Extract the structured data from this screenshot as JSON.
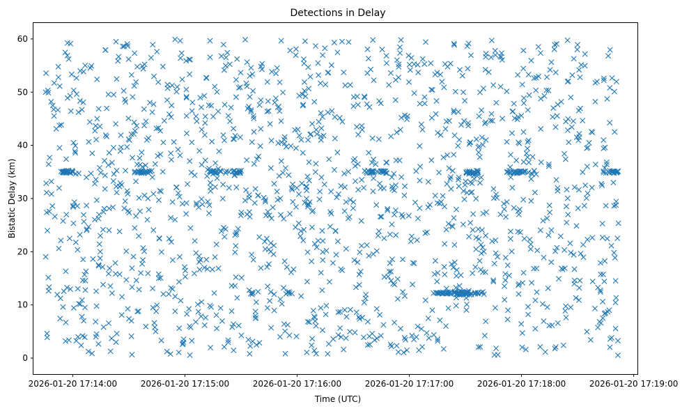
{
  "chart_data": {
    "type": "scatter",
    "title": "Detections in Delay",
    "xlabel": "Time (UTC)",
    "ylabel": "Bistatic Delay (km)",
    "marker": "x",
    "color": "#1f77b4",
    "grid": false,
    "legend": "none",
    "x_start": "2026-01-20 17:13:45",
    "x_end": "2026-01-20 17:18:52",
    "xlim": [
      "2026-01-20 17:13:39",
      "2026-01-20 17:19:02"
    ],
    "ylim": [
      -3,
      63
    ],
    "xticks": [
      "2026-01-20 17:14:00",
      "2026-01-20 17:15:00",
      "2026-01-20 17:16:00",
      "2026-01-20 17:17:00",
      "2026-01-20 17:18:00",
      "2026-01-20 17:19:00"
    ],
    "yticks": [
      "0",
      "10",
      "20",
      "30",
      "40",
      "50",
      "60"
    ],
    "background_points": 1500,
    "value_range": [
      0.5,
      60
    ],
    "bands": [
      {
        "y": 35,
        "start": "2026-01-20 17:13:53",
        "end": "2026-01-20 17:14:00",
        "points": 25
      },
      {
        "y": 35,
        "start": "2026-01-20 17:14:33",
        "end": "2026-01-20 17:14:43",
        "points": 20
      },
      {
        "y": 35,
        "start": "2026-01-20 17:15:12",
        "end": "2026-01-20 17:15:30",
        "points": 28
      },
      {
        "y": 35,
        "start": "2026-01-20 17:16:35",
        "end": "2026-01-20 17:16:48",
        "points": 25
      },
      {
        "y": 35,
        "start": "2026-01-20 17:17:30",
        "end": "2026-01-20 17:17:37",
        "points": 18
      },
      {
        "y": 35,
        "start": "2026-01-20 17:17:52",
        "end": "2026-01-20 17:18:08",
        "points": 26
      },
      {
        "y": 35,
        "start": "2026-01-20 17:18:43",
        "end": "2026-01-20 17:18:52",
        "points": 18
      },
      {
        "y": 12.2,
        "start": "2026-01-20 17:17:14",
        "end": "2026-01-20 17:17:40",
        "points": 60
      },
      {
        "y": 12.2,
        "start": "2026-01-20 17:15:54",
        "end": "2026-01-20 17:15:58",
        "points": 5
      },
      {
        "y": 12.2,
        "start": "2026-01-20 17:15:35",
        "end": "2026-01-20 17:15:37",
        "points": 4
      }
    ]
  }
}
